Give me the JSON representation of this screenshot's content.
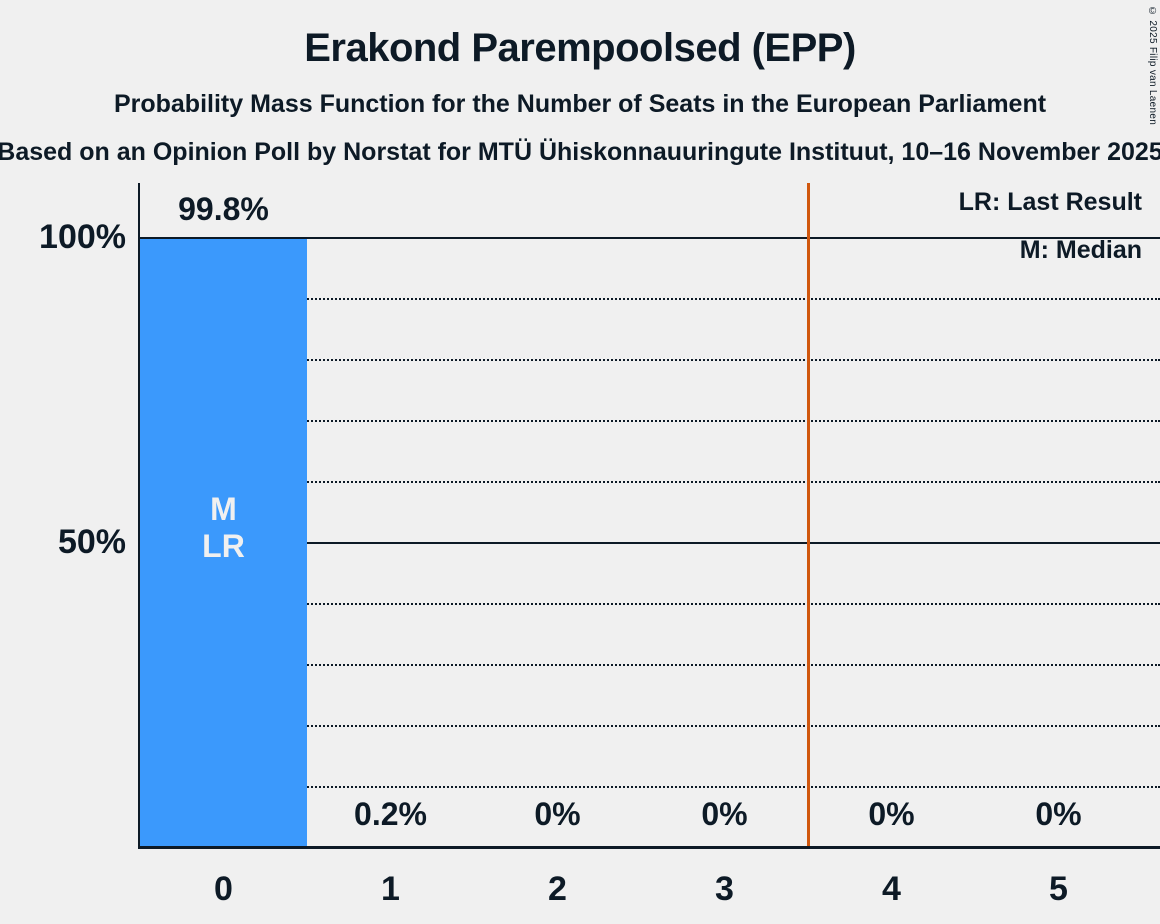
{
  "page": {
    "copyright": "© 2025 Filip van Laenen"
  },
  "chart_data": {
    "type": "bar",
    "title": "Erakond Parempoolsed (EPP)",
    "subtitle": "Probability Mass Function for the Number of Seats in the European Parliament",
    "source_line": "Based on an Opinion Poll by Norstat for MTÜ Ühiskonnauuringute Instituut, 10–16 November 2025",
    "xlabel": "",
    "ylabel": "",
    "categories": [
      "0",
      "1",
      "2",
      "3",
      "4",
      "5"
    ],
    "values": [
      99.8,
      0.2,
      0,
      0,
      0,
      0
    ],
    "value_labels": [
      "99.8%",
      "0.2%",
      "0%",
      "0%",
      "0%",
      "0%"
    ],
    "bar_annotations": [
      [
        "M",
        "LR"
      ],
      [],
      [],
      [],
      [],
      []
    ],
    "ylim": [
      0,
      100
    ],
    "yticks": [
      {
        "value": 100,
        "label": "100%"
      },
      {
        "value": 50,
        "label": "50%"
      }
    ],
    "gridlines": {
      "solid": [
        100,
        50
      ],
      "dotted": [
        90,
        80,
        70,
        60,
        40,
        30,
        20,
        10
      ]
    },
    "majority_line": {
      "x": 3.5,
      "color": "#d0570e"
    },
    "legend": {
      "lr": "LR: Last Result",
      "m": "M: Median"
    },
    "legend_position": "top-right",
    "colors": {
      "bar": "#3b99fc",
      "background": "#f0f0f0",
      "text": "#0d1a26"
    }
  }
}
